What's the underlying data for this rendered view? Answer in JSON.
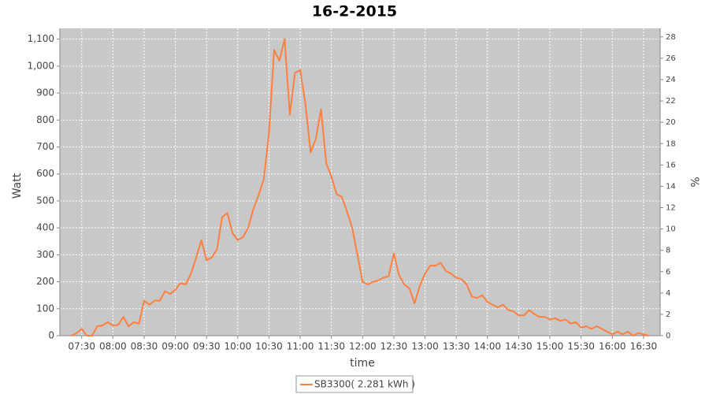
{
  "chart_data": {
    "type": "line",
    "title": "16-2-2015",
    "x_label": "time",
    "y_label": "Watt",
    "y2_label": "%",
    "x": [
      "07:20",
      "07:25",
      "07:30",
      "07:35",
      "07:40",
      "07:45",
      "07:50",
      "07:55",
      "08:00",
      "08:05",
      "08:10",
      "08:15",
      "08:20",
      "08:25",
      "08:30",
      "08:35",
      "08:40",
      "08:45",
      "08:50",
      "08:55",
      "09:00",
      "09:05",
      "09:10",
      "09:15",
      "09:20",
      "09:25",
      "09:30",
      "09:35",
      "09:40",
      "09:45",
      "09:50",
      "09:55",
      "10:00",
      "10:05",
      "10:10",
      "10:15",
      "10:20",
      "10:25",
      "10:30",
      "10:35",
      "10:40",
      "10:45",
      "10:50",
      "10:55",
      "11:00",
      "11:05",
      "11:10",
      "11:15",
      "11:20",
      "11:25",
      "11:30",
      "11:35",
      "11:40",
      "11:45",
      "11:50",
      "11:55",
      "12:00",
      "12:05",
      "12:10",
      "12:15",
      "12:20",
      "12:25",
      "12:30",
      "12:35",
      "12:40",
      "12:45",
      "12:50",
      "12:55",
      "13:00",
      "13:05",
      "13:10",
      "13:15",
      "13:20",
      "13:25",
      "13:30",
      "13:35",
      "13:40",
      "13:45",
      "13:50",
      "13:55",
      "14:00",
      "14:05",
      "14:10",
      "14:15",
      "14:20",
      "14:25",
      "14:30",
      "14:35",
      "14:40",
      "14:45",
      "14:50",
      "14:55",
      "15:00",
      "15:05",
      "15:10",
      "15:15",
      "15:20",
      "15:25",
      "15:30",
      "15:35",
      "15:40",
      "15:45",
      "15:50",
      "15:55",
      "16:00",
      "16:05",
      "16:10",
      "16:15",
      "16:20",
      "16:25",
      "16:30",
      "16:35"
    ],
    "series": [
      {
        "name": "SB3300( 2.281 kWh )",
        "color": "#ff7f3f",
        "values": [
          0,
          10,
          25,
          0,
          0,
          35,
          38,
          50,
          38,
          40,
          70,
          35,
          50,
          45,
          130,
          115,
          130,
          130,
          165,
          155,
          170,
          195,
          190,
          230,
          290,
          355,
          280,
          290,
          320,
          440,
          455,
          380,
          355,
          365,
          400,
          470,
          520,
          580,
          750,
          1060,
          1020,
          1100,
          820,
          975,
          985,
          860,
          680,
          730,
          840,
          640,
          590,
          525,
          515,
          460,
          400,
          300,
          200,
          190,
          200,
          205,
          215,
          220,
          305,
          225,
          190,
          175,
          120,
          185,
          230,
          260,
          260,
          270,
          240,
          230,
          215,
          210,
          190,
          145,
          140,
          150,
          125,
          115,
          105,
          115,
          95,
          90,
          75,
          75,
          95,
          80,
          70,
          70,
          60,
          65,
          55,
          60,
          45,
          50,
          30,
          35,
          25,
          35,
          25,
          15,
          5,
          15,
          5,
          15,
          0,
          10,
          5,
          0
        ]
      }
    ],
    "xlim": [
      "07:09",
      "16:46"
    ],
    "xticks": [
      "07:30",
      "08:00",
      "08:30",
      "09:00",
      "09:30",
      "10:00",
      "10:30",
      "11:00",
      "11:30",
      "12:00",
      "12:30",
      "13:00",
      "13:30",
      "14:00",
      "14:30",
      "15:00",
      "15:30",
      "16:00",
      "16:30"
    ],
    "ylim": [
      0,
      1140
    ],
    "yticks": [
      0,
      100,
      200,
      300,
      400,
      500,
      600,
      700,
      800,
      900,
      {
        "value": 1000,
        "label": "1,000"
      },
      {
        "value": 1100,
        "label": "1,100"
      }
    ],
    "y2lim": [
      0,
      28.8
    ],
    "y2ticks": [
      0,
      2,
      4,
      6,
      8,
      10,
      12,
      14,
      16,
      18,
      20,
      22,
      24,
      26,
      28
    ],
    "grid": true,
    "legend": "bottom"
  }
}
